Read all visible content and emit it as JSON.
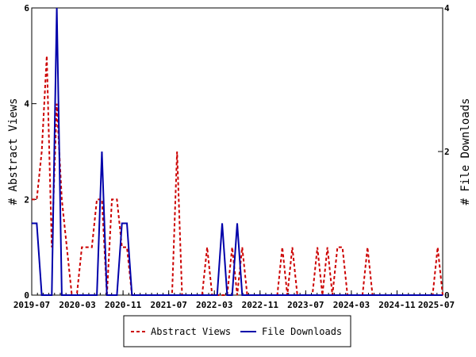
{
  "chart_data": {
    "type": "line",
    "x_tick_labels": [
      "2019-07",
      "2020-03",
      "2020-11",
      "2021-07",
      "2022-03",
      "2022-11",
      "2023-07",
      "2024-03",
      "2024-11",
      "2025-07"
    ],
    "x_start_month": "2019-07",
    "x_end_month": "2025-07",
    "left_axis": {
      "label": "# Abstract Views",
      "range": [
        0,
        6
      ],
      "ticks": [
        0,
        2,
        4,
        6
      ]
    },
    "right_axis": {
      "label": "# File Downloads",
      "range": [
        0,
        4
      ],
      "ticks": [
        0,
        2,
        4
      ]
    },
    "grid": false,
    "legend_position": "bottom",
    "series": [
      {
        "name": "Abstract Views",
        "axis": "left",
        "color": "#cc0000",
        "style": "dashed",
        "values": [
          2,
          2,
          3,
          5,
          1,
          4,
          2,
          1,
          0,
          0,
          1,
          1,
          1,
          2,
          2,
          0,
          2,
          2,
          1,
          1,
          0,
          0,
          0,
          0,
          0,
          0,
          0,
          0,
          0,
          3,
          0,
          0,
          0,
          0,
          0,
          1,
          0,
          0,
          0,
          0,
          1,
          0,
          1,
          0,
          0,
          0,
          0,
          0,
          0,
          0,
          1,
          0,
          1,
          0,
          0,
          0,
          0,
          1,
          0,
          1,
          0,
          1,
          1,
          0,
          0,
          0,
          0,
          1,
          0,
          0,
          0,
          0,
          0,
          0,
          0,
          0,
          0,
          0,
          0,
          0,
          0,
          1,
          0
        ]
      },
      {
        "name": "File Downloads",
        "axis": "right",
        "color": "#0000aa",
        "style": "solid",
        "values": [
          1,
          1,
          0,
          0,
          0,
          4,
          0,
          0,
          0,
          0,
          0,
          0,
          0,
          0,
          2,
          0,
          0,
          0,
          1,
          1,
          0,
          0,
          0,
          0,
          0,
          0,
          0,
          0,
          0,
          0,
          0,
          0,
          0,
          0,
          0,
          0,
          0,
          0,
          1,
          0,
          0,
          1,
          0,
          0,
          0,
          0,
          0,
          0,
          0,
          0,
          0,
          0,
          0,
          0,
          0,
          0,
          0,
          0,
          0,
          0,
          0,
          0,
          0,
          0,
          0,
          0,
          0,
          0,
          0,
          0,
          0,
          0,
          0,
          0,
          0,
          0,
          0,
          0,
          0,
          0,
          0,
          0,
          0
        ]
      }
    ]
  }
}
